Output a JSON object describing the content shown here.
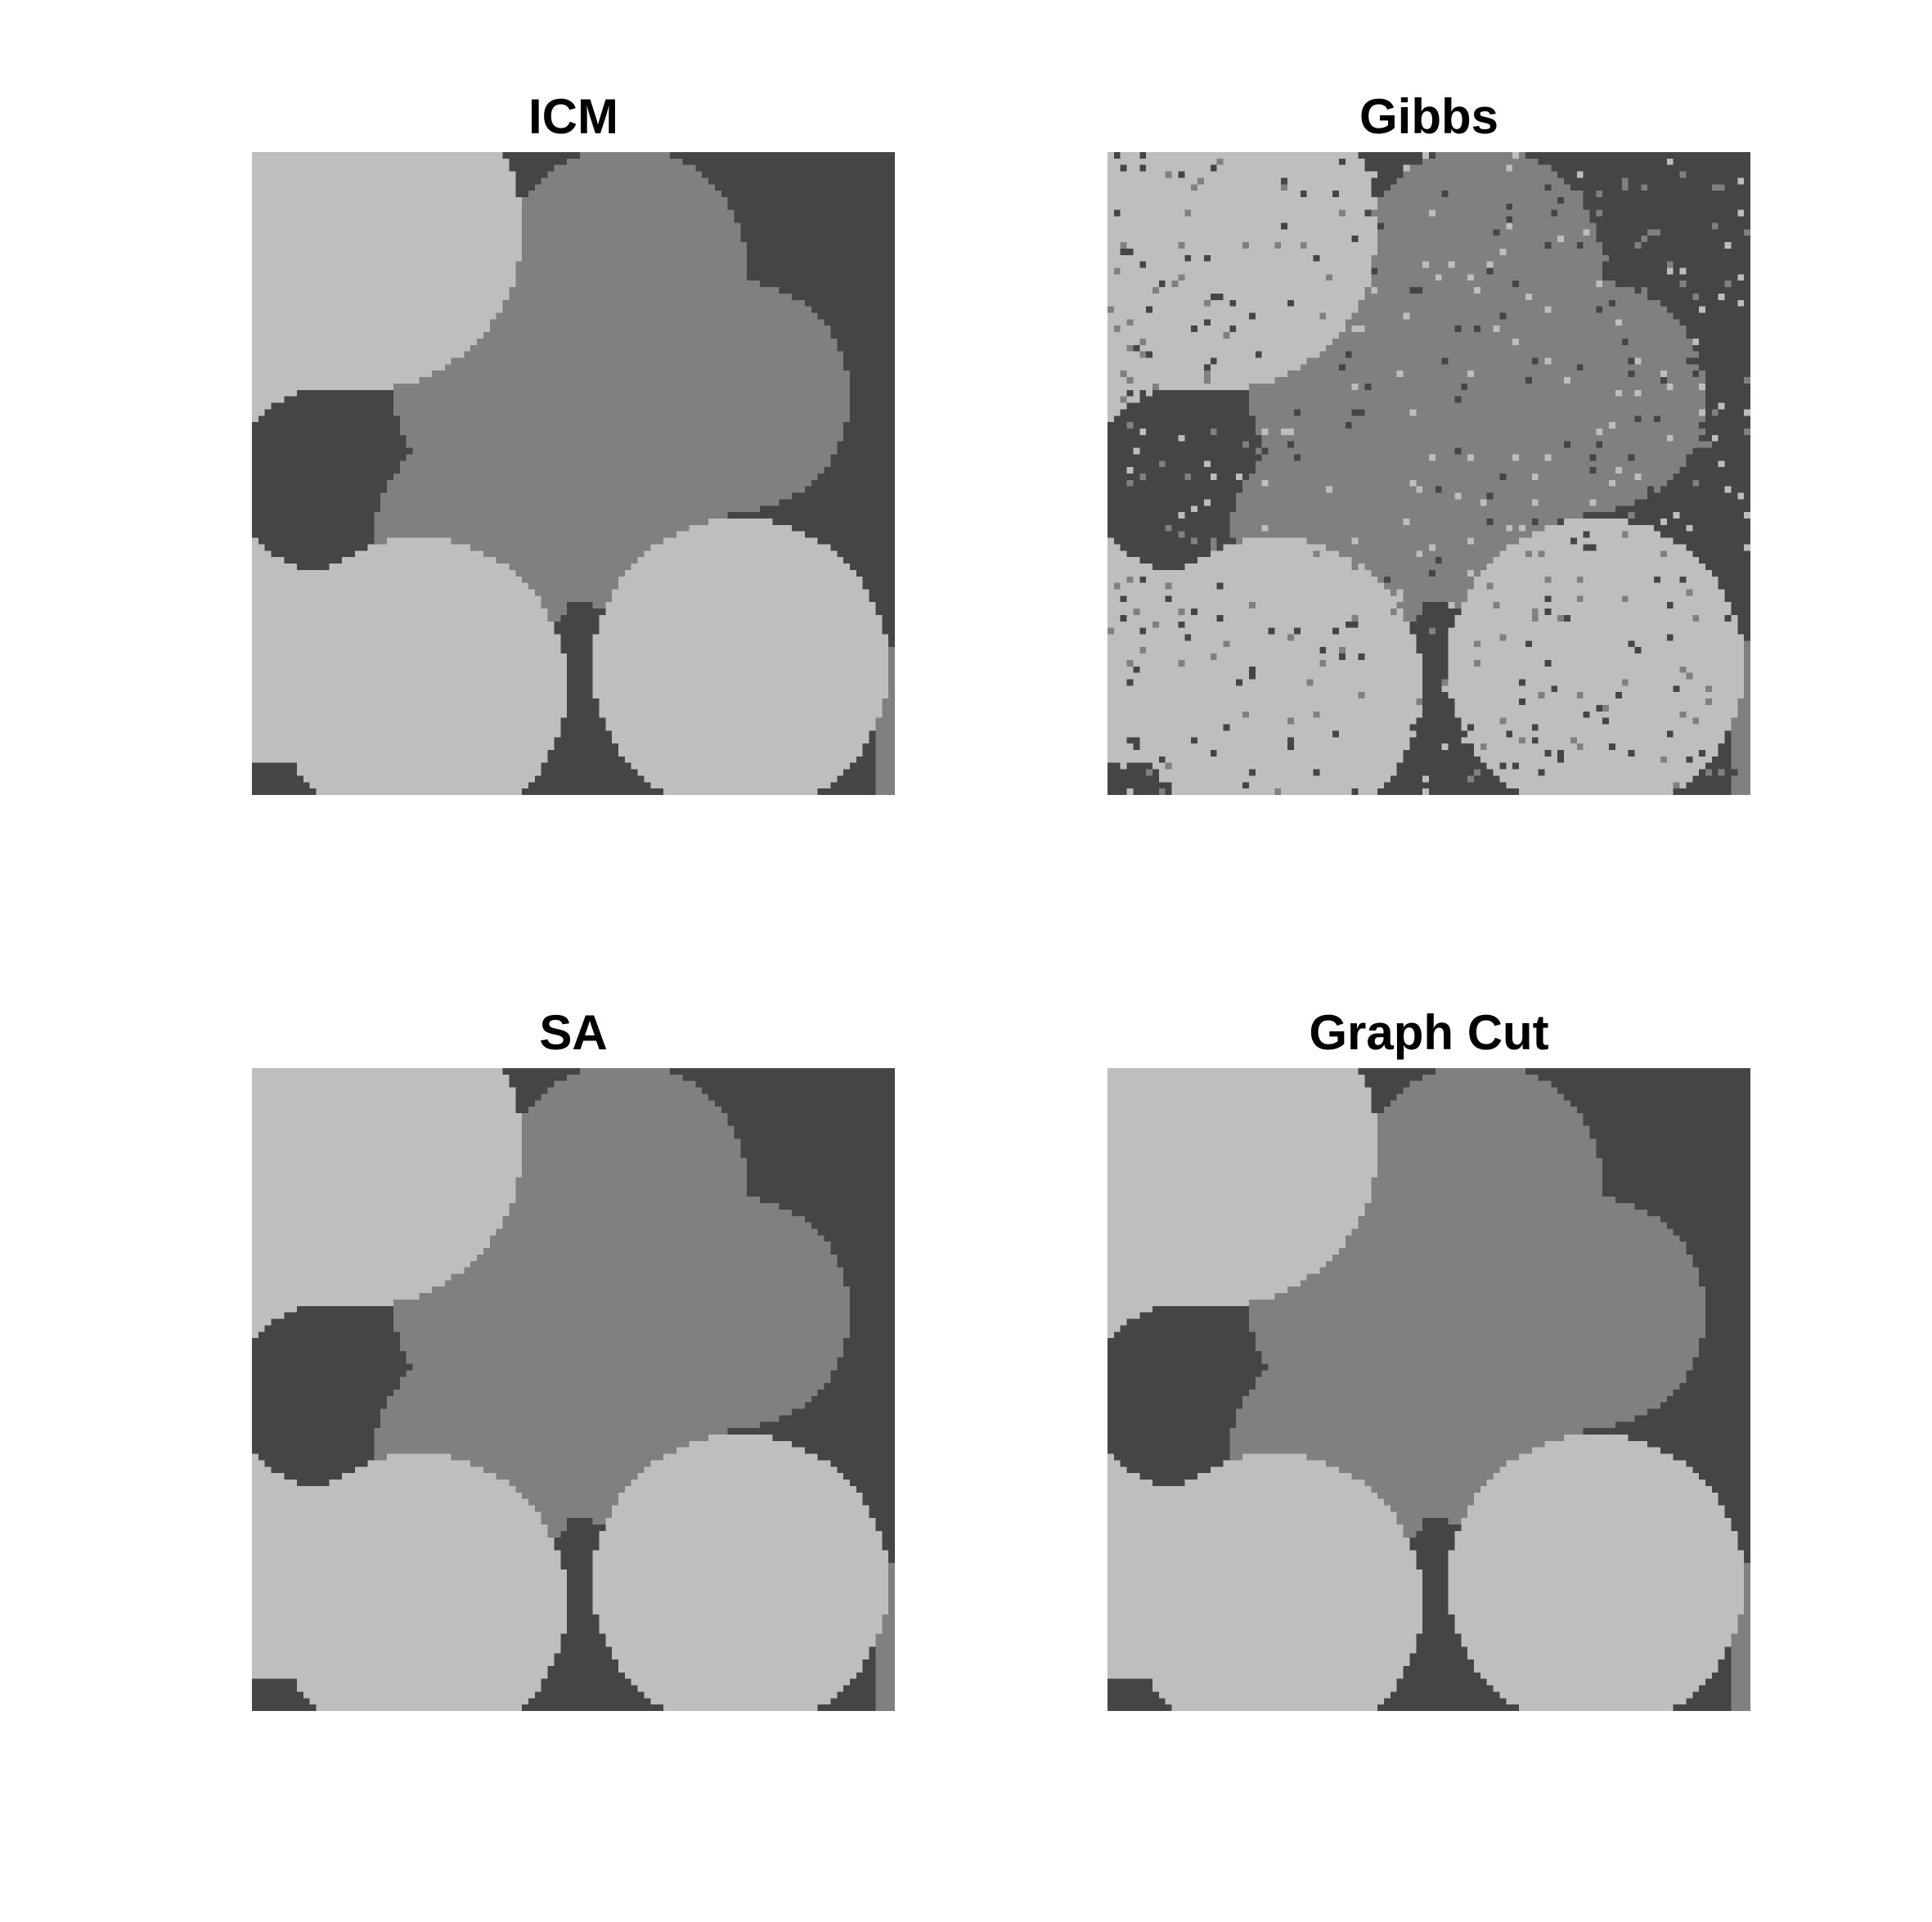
{
  "figure": {
    "panels": [
      {
        "id": "icm",
        "title": "ICM",
        "noise": 0
      },
      {
        "id": "gibbs",
        "title": "Gibbs",
        "noise": 0.06
      },
      {
        "id": "sa",
        "title": "SA",
        "noise": 0
      },
      {
        "id": "gc",
        "title": "Graph Cut",
        "noise": 0
      }
    ],
    "colors": {
      "dark": "#454545",
      "mid": "#808080",
      "light": "#bebebe"
    }
  }
}
